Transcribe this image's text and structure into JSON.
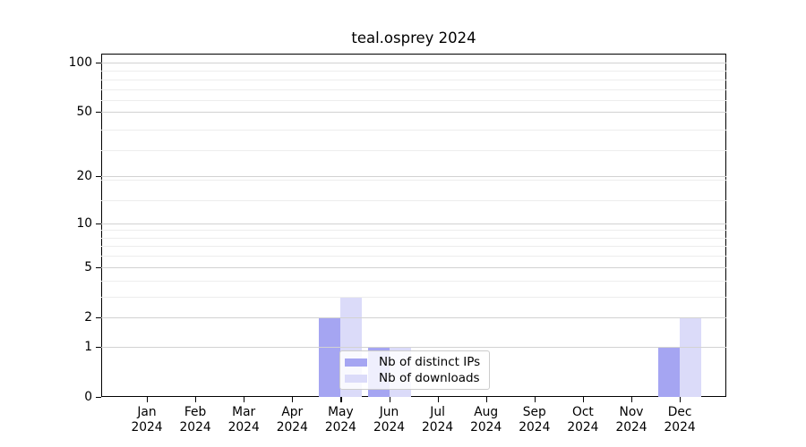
{
  "chart_data": {
    "type": "bar",
    "title": "teal.osprey 2024",
    "categories": [
      "Jan",
      "Feb",
      "Mar",
      "Apr",
      "May",
      "Jun",
      "Jul",
      "Aug",
      "Sep",
      "Oct",
      "Nov",
      "Dec"
    ],
    "category_year": "2024",
    "series": [
      {
        "name": "Nb of distinct IPs",
        "color": "#a5a5f2",
        "values": [
          0,
          0,
          0,
          0,
          2,
          1,
          0,
          0,
          0,
          0,
          0,
          1
        ]
      },
      {
        "name": "Nb of downloads",
        "color": "#dbdbf9",
        "values": [
          0,
          0,
          0,
          0,
          3,
          1,
          0,
          0,
          0,
          0,
          0,
          2
        ]
      }
    ],
    "y_axis": {
      "scale": "log1p",
      "ticks": [
        0,
        1,
        2,
        5,
        10,
        20,
        50,
        100
      ],
      "minor_ticks": [
        3,
        4,
        6,
        7,
        8,
        9,
        14,
        19,
        29,
        39,
        59,
        69,
        79,
        89
      ],
      "top_value": 113,
      "ylim": [
        0,
        113
      ]
    },
    "xlabel": "",
    "ylabel": "",
    "grid": "both",
    "legend": {
      "position": "lower-center-left",
      "entries": [
        "Nb of distinct IPs",
        "Nb of downloads"
      ]
    }
  }
}
